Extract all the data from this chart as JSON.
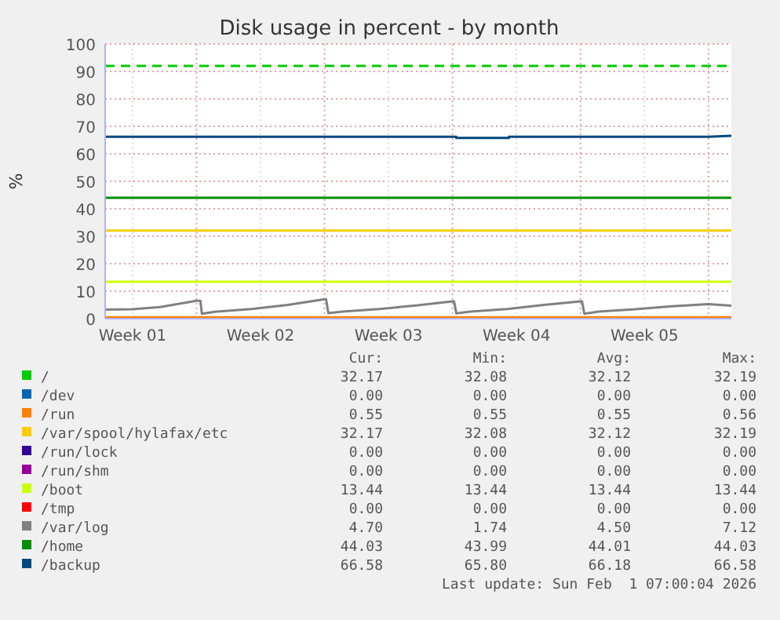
{
  "chart_data": {
    "type": "line",
    "title": "Disk usage in percent - by month",
    "ylabel": "%",
    "xlim": [
      "2025-12-29T01:00",
      "2026-02-01T07:00"
    ],
    "ylim": [
      0,
      100
    ],
    "xticks": [
      {
        "value": "2025-12-30T13:00",
        "label": "Week 01"
      },
      {
        "value": "2026-01-03T01:00",
        "label": null
      },
      {
        "value": "2026-01-06T13:00",
        "label": "Week 02"
      },
      {
        "value": "2026-01-10T01:00",
        "label": null
      },
      {
        "value": "2026-01-13T13:00",
        "label": "Week 03"
      },
      {
        "value": "2026-01-17T01:00",
        "label": null
      },
      {
        "value": "2026-01-20T13:00",
        "label": "Week 04"
      },
      {
        "value": "2026-01-24T01:00",
        "label": null
      },
      {
        "value": "2026-01-27T13:00",
        "label": "Week 05"
      },
      {
        "value": "2026-01-31T01:00",
        "label": null
      }
    ],
    "yticks": [
      0,
      10,
      20,
      30,
      40,
      50,
      60,
      70,
      80,
      90,
      100
    ],
    "grid": true,
    "legend": "bottom",
    "line_style": "solid",
    "marker": "none",
    "ref_lines": [
      {
        "axis": "y",
        "value": 92,
        "color": "#00cc00",
        "line_style": "dashed"
      }
    ],
    "series": [
      {
        "name": "/",
        "color": "#00cc00",
        "values": [
          null
        ]
      },
      {
        "name": "/dev",
        "color": "#0066b3",
        "values": [
          null
        ]
      },
      {
        "name": "/run",
        "color": "#ff8000",
        "x": [
          "2025-12-29T01:00",
          "2026-02-01T07:00"
        ],
        "values": [
          0.5,
          0.5
        ]
      },
      {
        "name": "/var/spool/hylafax/etc",
        "color": "#ffcc00",
        "x": [
          "2025-12-29T01:00",
          "2026-02-01T07:00"
        ],
        "values": [
          32.1,
          32.1
        ]
      },
      {
        "name": "/run/lock",
        "color": "#330099",
        "values": [
          null
        ]
      },
      {
        "name": "/run/shm",
        "color": "#990099",
        "values": [
          null
        ]
      },
      {
        "name": "/boot",
        "color": "#ccff00",
        "x": [
          "2025-12-29T01:00",
          "2026-02-01T07:00"
        ],
        "values": [
          13.4,
          13.4
        ]
      },
      {
        "name": "/tmp",
        "color": "#ff0000",
        "values": [
          null
        ]
      },
      {
        "name": "/var/log",
        "color": "#808080",
        "x": [
          "2025-12-29T01:00",
          "2025-12-30T13:00",
          "2026-01-01T01:00",
          "2026-01-03T01:00",
          "2026-01-03T06:00",
          "2026-01-03T08:00",
          "2026-01-04T01:00",
          "2026-01-06T01:00",
          "2026-01-08T01:00",
          "2026-01-10T01:00",
          "2026-01-10T03:00",
          "2026-01-10T06:00",
          "2026-01-11T01:00",
          "2026-01-13T01:00",
          "2026-01-15T01:00",
          "2026-01-17T01:00",
          "2026-01-17T03:00",
          "2026-01-17T06:00",
          "2026-01-18T01:00",
          "2026-01-20T01:00",
          "2026-01-22T01:00",
          "2026-01-24T01:00",
          "2026-01-24T03:00",
          "2026-01-24T06:00",
          "2026-01-25T01:00",
          "2026-01-27T01:00",
          "2026-01-29T01:00",
          "2026-01-31T01:00",
          "2026-02-01T07:00"
        ],
        "values": [
          3.3,
          3.4,
          4.2,
          6.5,
          6.5,
          1.8,
          2.5,
          3.5,
          5,
          7.1,
          7.1,
          2,
          2.6,
          3.5,
          4.8,
          6.3,
          6.3,
          1.9,
          2.6,
          3.5,
          5,
          6.3,
          6.3,
          1.8,
          2.6,
          3.4,
          4.5,
          5.3,
          4.7
        ]
      },
      {
        "name": "/home",
        "color": "#008f00",
        "x": [
          "2025-12-29T01:00",
          "2026-02-01T07:00"
        ],
        "values": [
          44,
          44
        ]
      },
      {
        "name": "/backup",
        "color": "#00487d",
        "x": [
          "2025-12-29T01:00",
          "2026-01-17T06:00",
          "2026-01-17T06:00",
          "2026-01-20T03:00",
          "2026-01-20T03:00",
          "2026-01-31T01:00",
          "2026-02-01T07:00"
        ],
        "values": [
          66.2,
          66.2,
          65.8,
          65.8,
          66.2,
          66.2,
          66.6
        ]
      }
    ],
    "annotations": [
      "Cur:",
      "Min:",
      "Avg:",
      "Max:",
      "32.17",
      "32.08",
      "32.12",
      "32.19",
      "0.00",
      "0.00",
      "0.00",
      "0.00",
      "0.55",
      "0.55",
      "0.55",
      "0.56",
      "32.17",
      "32.08",
      "32.12",
      "32.19",
      "0.00",
      "0.00",
      "0.00",
      "0.00",
      "0.00",
      "0.00",
      "0.00",
      "0.00",
      "13.44",
      "13.44",
      "13.44",
      "13.44",
      "0.00",
      "0.00",
      "0.00",
      "0.00",
      "4.70",
      "1.74",
      "4.50",
      "7.12",
      "44.03",
      "43.99",
      "44.01",
      "44.03",
      "66.58",
      "65.80",
      "66.18",
      "66.58",
      "Last update: Sun Feb  1 07:00:04 2026"
    ]
  }
}
